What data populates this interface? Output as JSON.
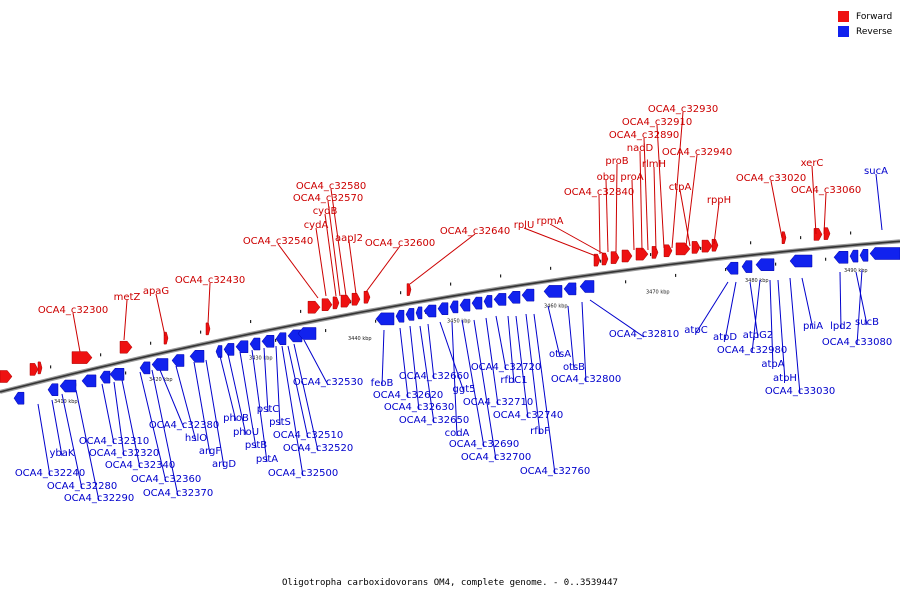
{
  "caption": "Oligotropha carboxidovorans OM4, complete genome. - 0..3539447",
  "legend": {
    "forward": "Forward",
    "reverse": "Reverse",
    "forward_color": "#ee1111",
    "reverse_color": "#1122ee"
  },
  "ticks": [
    "3410 kbp",
    "3420 kbp",
    "3430 kbp",
    "3440 kbp",
    "3450 kbp",
    "3460 kbp",
    "3470 kbp",
    "3480 kbp",
    "3490 kbp"
  ],
  "forward_labels": [
    "OCA4_c32300",
    "metZ",
    "apaG",
    "OCA4_c32430",
    "OCA4_c32540",
    "OCA4_c32580",
    "OCA4_c32570",
    "cydB",
    "cydA",
    "aapJ2",
    "OCA4_c32600",
    "OCA4_c32640",
    "rplU",
    "rpmA",
    "proB",
    "obg",
    "OCA4_c32840",
    "proA",
    "nadD",
    "rlmH",
    "OCA4_c32890",
    "OCA4_c32910",
    "OCA4_c32930",
    "OCA4_c32940",
    "ctpA",
    "rppH",
    "OCA4_c33020",
    "xerC",
    "OCA4_c33060"
  ],
  "reverse_labels": [
    "ybaK",
    "OCA4_c32240",
    "OCA4_c32280",
    "OCA4_c32290",
    "OCA4_c32310",
    "OCA4_c32320",
    "OCA4_c32340",
    "OCA4_c32360",
    "OCA4_c32370",
    "OCA4_c32380",
    "hslO",
    "argF",
    "argD",
    "phoB",
    "phoU",
    "pstB",
    "pstA",
    "pstC",
    "pstS",
    "OCA4_c32510",
    "OCA4_c32520",
    "OCA4_c32500",
    "OCA4_c32530",
    "feoB",
    "OCA4_c32620",
    "OCA4_c32630",
    "OCA4_c32650",
    "OCA4_c32660",
    "ggt5",
    "codA",
    "OCA4_c32690",
    "OCA4_c32700",
    "OCA4_c32710",
    "OCA4_c32720",
    "rfbC1",
    "OCA4_c32740",
    "rfbF",
    "OCA4_c32760",
    "otsA",
    "otsB",
    "OCA4_c32800",
    "OCA4_c32810",
    "atpC",
    "atpD",
    "atpG2",
    "OCA4_c32980",
    "atpA",
    "atpH",
    "OCA4_c33030",
    "priA",
    "lpd2",
    "sucB",
    "OCA4_c33080",
    "sucA"
  ]
}
